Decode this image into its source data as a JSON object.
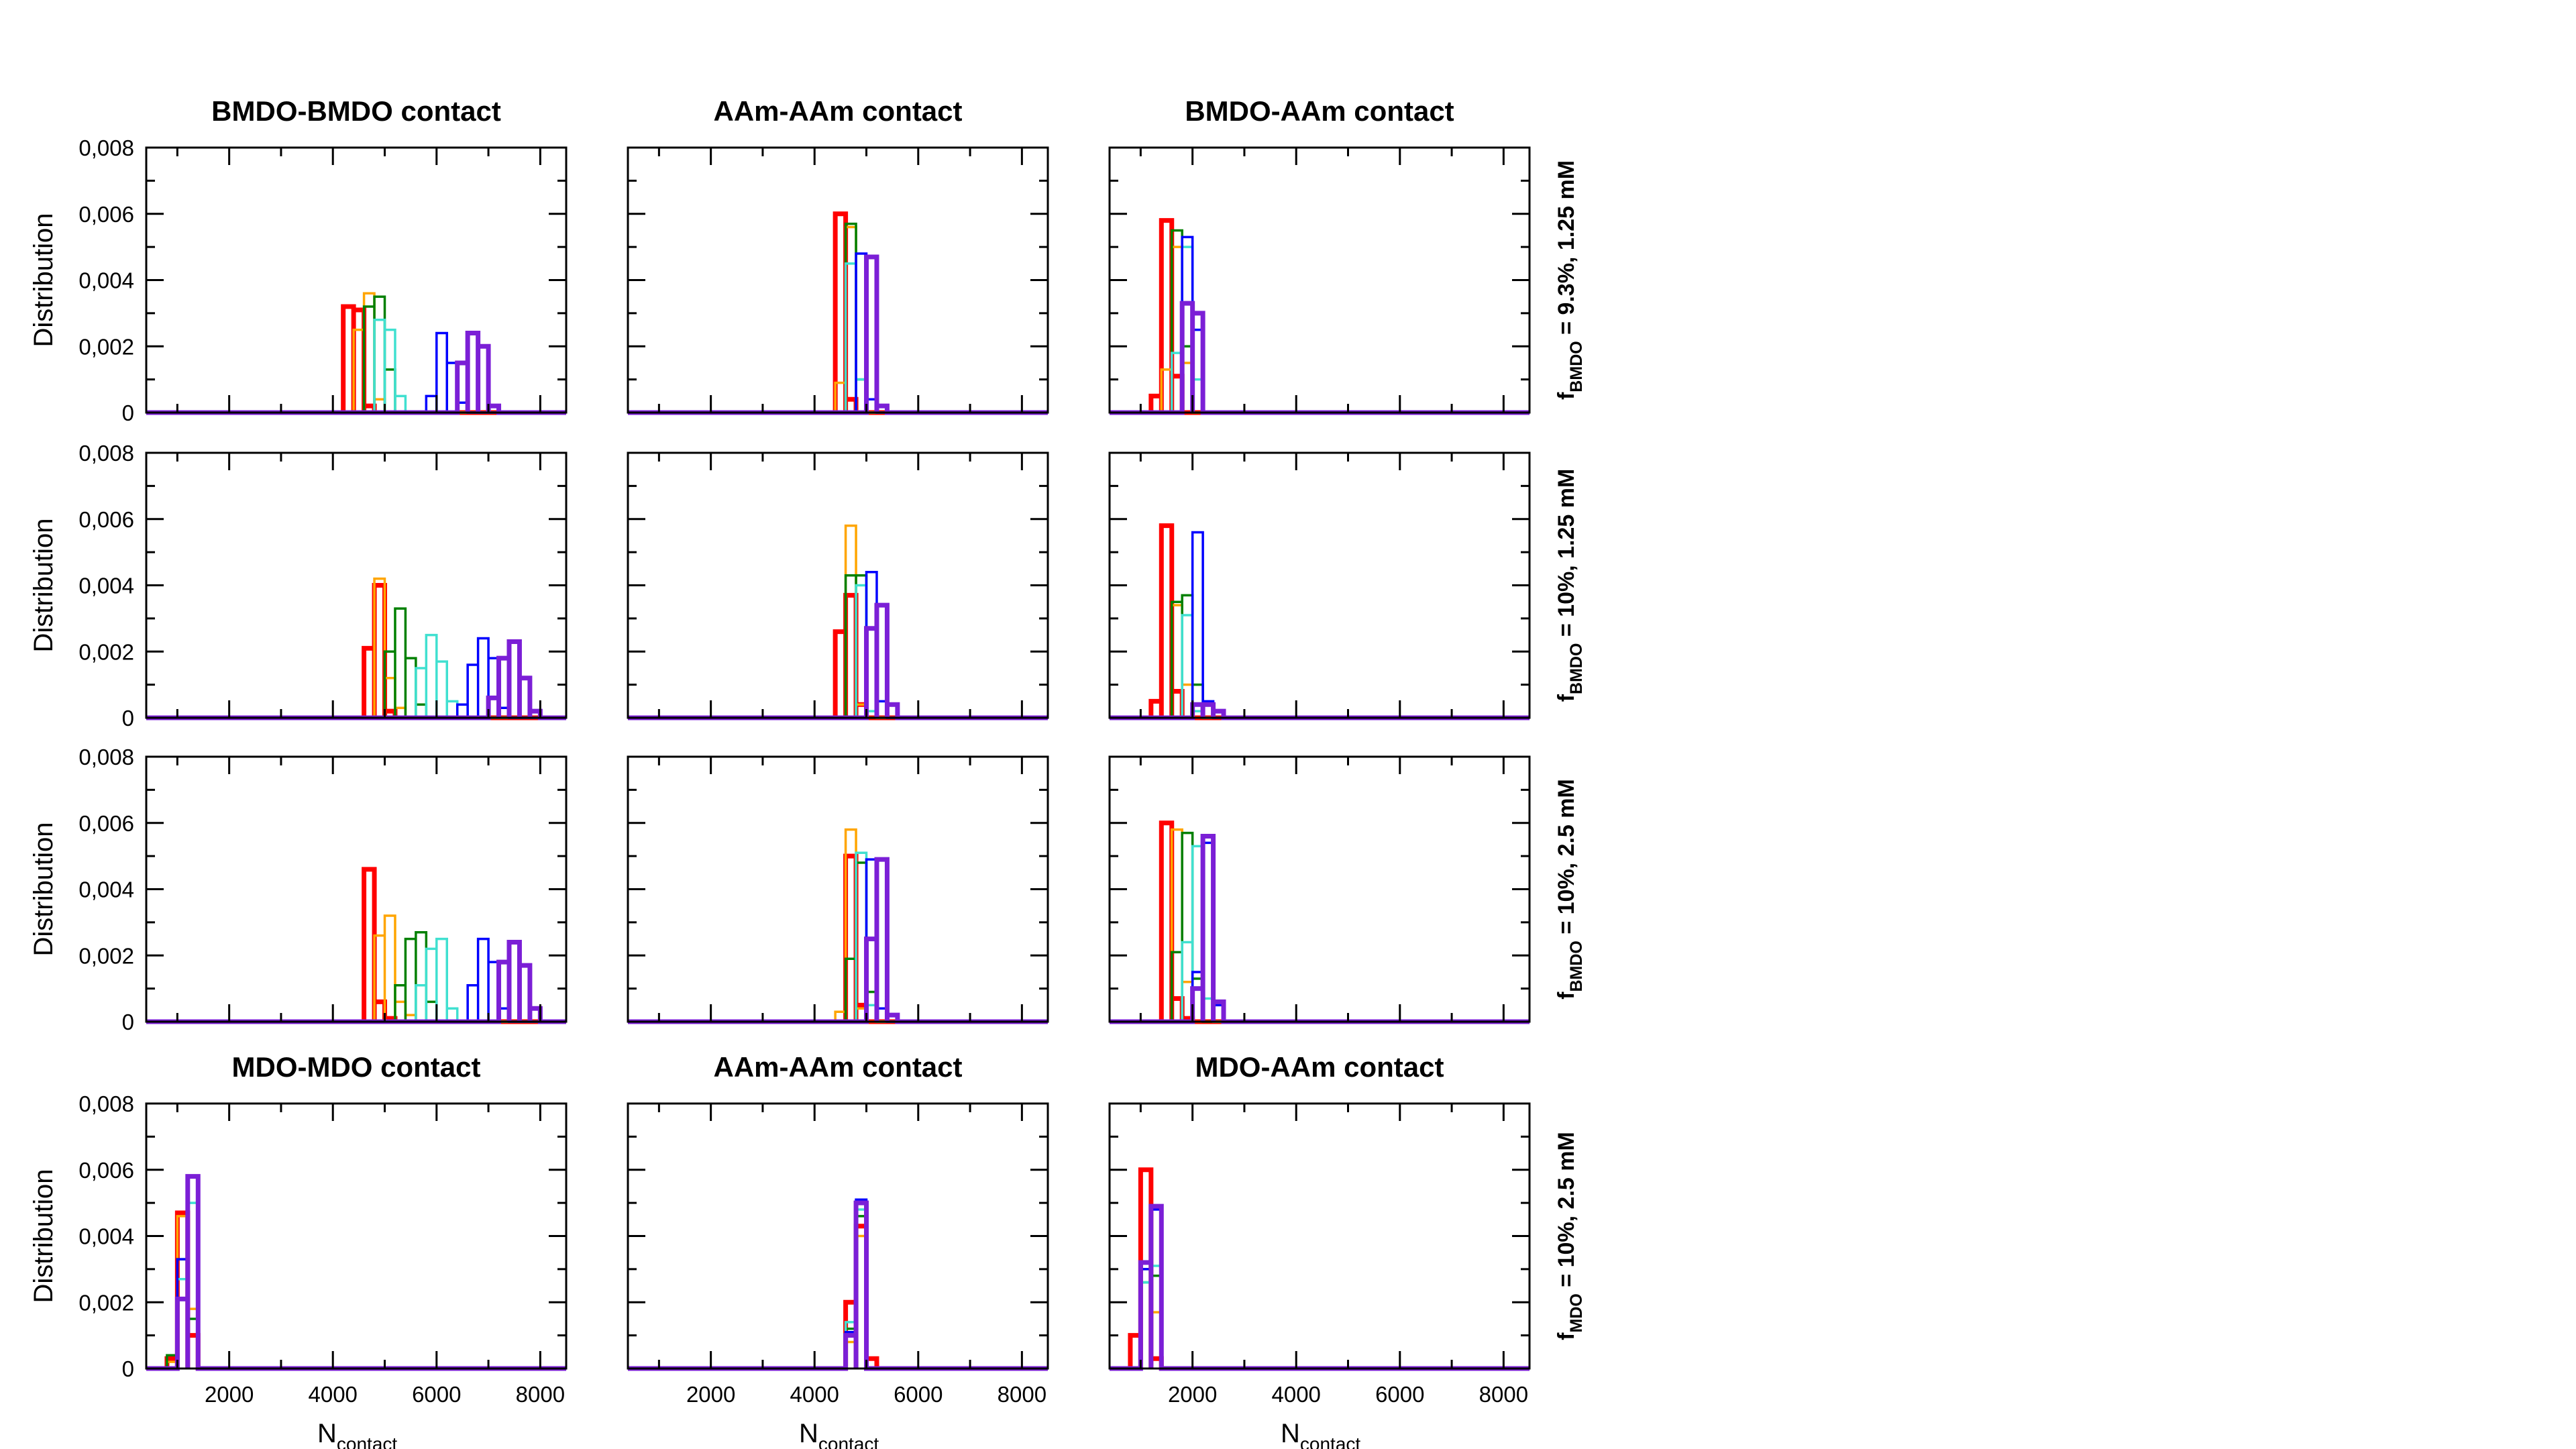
{
  "figure": {
    "x_axis_label": "N",
    "x_axis_label_sub": "contact",
    "y_axis_label": "Distribution",
    "xlim": [
      400,
      8500
    ],
    "ylim": [
      0,
      0.008
    ],
    "x_ticks": [
      2000,
      4000,
      6000,
      8000
    ],
    "y_ticks": [
      0,
      0.002,
      0.004,
      0.006,
      0.008
    ],
    "y_tick_labels": [
      "0",
      "0,002",
      "0,004",
      "0,006",
      "0,008"
    ],
    "x_tick_labels": [
      "2000",
      "4000",
      "6000",
      "8000"
    ],
    "colors": [
      "#ff0000",
      "#ffa500",
      "#008000",
      "#40e0d0",
      "#0000ff",
      "#7b1fd6"
    ],
    "bold_series": [
      0,
      5
    ],
    "titles_top": [
      "BMDO-BMDO contact",
      "AAm-AAm contact",
      "BMDO-AAm contact"
    ],
    "titles_bottom": [
      "MDO-MDO contact",
      "AAm-AAm contact",
      "MDO-AAm contact"
    ],
    "row_labels": [
      {
        "f": "f",
        "sub": "BMDO",
        "rest": " = 9.3%, 1.25 mM"
      },
      {
        "f": "f",
        "sub": "BMDO",
        "rest": " = 10%, 1.25 mM"
      },
      {
        "f": "f",
        "sub": "BMDO",
        "rest": " = 10%, 2.5 mM"
      },
      {
        "f": "f",
        "sub": "MDO",
        "rest": " = 10%, 2.5 mM"
      }
    ]
  },
  "chart_data": [
    {
      "type": "step",
      "panel": "row1-col1",
      "title": "BMDO-BMDO contact",
      "xlabel": "",
      "ylabel": "Distribution",
      "xlim": [
        400,
        8500
      ],
      "ylim": [
        0,
        0.008
      ],
      "bin_width": 200,
      "series": [
        {
          "x": [
            4300,
            4500,
            4700
          ],
          "values": [
            0.0032,
            0.0031,
            0.0002
          ]
        },
        {
          "x": [
            4500,
            4700,
            4900
          ],
          "values": [
            0.0025,
            0.0036,
            0.0004
          ]
        },
        {
          "x": [
            4700,
            4900,
            5100
          ],
          "values": [
            0.0032,
            0.0035,
            0.0013
          ]
        },
        {
          "x": [
            4900,
            5100,
            5300
          ],
          "values": [
            0.0028,
            0.0025,
            0.0005
          ]
        },
        {
          "x": [
            5900,
            6100,
            6300,
            6500
          ],
          "values": [
            0.0005,
            0.0024,
            0.0015,
            0.0003
          ]
        },
        {
          "x": [
            6500,
            6700,
            6900,
            7100
          ],
          "values": [
            0.0015,
            0.0024,
            0.002,
            0.0002
          ]
        }
      ]
    },
    {
      "type": "step",
      "panel": "row1-col2",
      "title": "AAm-AAm contact",
      "xlabel": "",
      "ylabel": "",
      "xlim": [
        400,
        8500
      ],
      "ylim": [
        0,
        0.008
      ],
      "bin_width": 200,
      "series": [
        {
          "x": [
            4500,
            4700
          ],
          "values": [
            0.006,
            0.0004
          ]
        },
        {
          "x": [
            4500,
            4700
          ],
          "values": [
            0.0009,
            0.0056
          ]
        },
        {
          "x": [
            4700,
            4900
          ],
          "values": [
            0.0057,
            0.001
          ]
        },
        {
          "x": [
            4700,
            4900
          ],
          "values": [
            0.0045,
            0.001
          ]
        },
        {
          "x": [
            4900,
            5100
          ],
          "values": [
            0.0048,
            0.0004
          ]
        },
        {
          "x": [
            5100,
            5300
          ],
          "values": [
            0.0047,
            0.0002
          ]
        }
      ]
    },
    {
      "type": "step",
      "panel": "row1-col3",
      "title": "BMDO-AAm contact",
      "xlabel": "",
      "ylabel": "",
      "xlim": [
        400,
        8500
      ],
      "ylim": [
        0,
        0.008
      ],
      "bin_width": 200,
      "series": [
        {
          "x": [
            1300,
            1500,
            1700
          ],
          "values": [
            0.0005,
            0.0058,
            0.0011
          ]
        },
        {
          "x": [
            1500,
            1700,
            1900
          ],
          "values": [
            0.0013,
            0.005,
            0.0015
          ]
        },
        {
          "x": [
            1700,
            1900
          ],
          "values": [
            0.0055,
            0.002
          ]
        },
        {
          "x": [
            1700,
            1900,
            2100
          ],
          "values": [
            0.0018,
            0.005,
            0.001
          ]
        },
        {
          "x": [
            1900,
            2100
          ],
          "values": [
            0.0053,
            0.0025
          ]
        },
        {
          "x": [
            1900,
            2100
          ],
          "values": [
            0.0033,
            0.003
          ]
        }
      ]
    },
    {
      "type": "step",
      "panel": "row2-col1",
      "title": "",
      "xlabel": "",
      "ylabel": "Distribution",
      "xlim": [
        400,
        8500
      ],
      "ylim": [
        0,
        0.008
      ],
      "bin_width": 200,
      "series": [
        {
          "x": [
            4700,
            4900,
            5100
          ],
          "values": [
            0.0021,
            0.004,
            0.0002
          ]
        },
        {
          "x": [
            4900,
            5100,
            5300
          ],
          "values": [
            0.0042,
            0.0012,
            0.0003
          ]
        },
        {
          "x": [
            5100,
            5300,
            5500,
            5700
          ],
          "values": [
            0.002,
            0.0033,
            0.0018,
            0.0004
          ]
        },
        {
          "x": [
            5700,
            5900,
            6100,
            6300
          ],
          "values": [
            0.0015,
            0.0025,
            0.0017,
            0.0005
          ]
        },
        {
          "x": [
            6500,
            6700,
            6900,
            7100,
            7300
          ],
          "values": [
            0.0004,
            0.0016,
            0.0024,
            0.0018,
            0.0003
          ]
        },
        {
          "x": [
            7100,
            7300,
            7500,
            7700,
            7900
          ],
          "values": [
            0.0006,
            0.0018,
            0.0023,
            0.0012,
            0.0002
          ]
        }
      ]
    },
    {
      "type": "step",
      "panel": "row2-col2",
      "title": "",
      "xlabel": "",
      "ylabel": "",
      "xlim": [
        400,
        8500
      ],
      "ylim": [
        0,
        0.008
      ],
      "bin_width": 200,
      "series": [
        {
          "x": [
            4500,
            4700,
            4900
          ],
          "values": [
            0.0026,
            0.0037,
            0.0004
          ]
        },
        {
          "x": [
            4700,
            4900
          ],
          "values": [
            0.0058,
            0.0004
          ]
        },
        {
          "x": [
            4700,
            4900
          ],
          "values": [
            0.0043,
            0.0043
          ]
        },
        {
          "x": [
            4900,
            5100
          ],
          "values": [
            0.004,
            0.0002
          ]
        },
        {
          "x": [
            5100,
            5300
          ],
          "values": [
            0.0044,
            0.0005
          ]
        },
        {
          "x": [
            5100,
            5300,
            5500
          ],
          "values": [
            0.0027,
            0.0034,
            0.0004
          ]
        }
      ]
    },
    {
      "type": "step",
      "panel": "row2-col3",
      "title": "",
      "xlabel": "",
      "ylabel": "",
      "xlim": [
        400,
        8500
      ],
      "ylim": [
        0,
        0.008
      ],
      "bin_width": 200,
      "series": [
        {
          "x": [
            1300,
            1500,
            1700
          ],
          "values": [
            0.0005,
            0.0058,
            0.0008
          ]
        },
        {
          "x": [
            1700,
            1900
          ],
          "values": [
            0.0034,
            0.001
          ]
        },
        {
          "x": [
            1700,
            1900,
            2100
          ],
          "values": [
            0.0035,
            0.0037,
            0.001
          ]
        },
        {
          "x": [
            1900,
            2100
          ],
          "values": [
            0.0031,
            0.0002
          ]
        },
        {
          "x": [
            2100,
            2300
          ],
          "values": [
            0.0056,
            0.0005
          ]
        },
        {
          "x": [
            2100,
            2300,
            2500
          ],
          "values": [
            0.0004,
            0.0004,
            0.0002
          ]
        }
      ]
    },
    {
      "type": "step",
      "panel": "row3-col1",
      "title": "",
      "xlabel": "",
      "ylabel": "Distribution",
      "xlim": [
        400,
        8500
      ],
      "ylim": [
        0,
        0.008
      ],
      "bin_width": 200,
      "series": [
        {
          "x": [
            4700,
            4900,
            5100
          ],
          "values": [
            0.0046,
            0.0006,
            0.0001
          ]
        },
        {
          "x": [
            4900,
            5100,
            5300,
            5500
          ],
          "values": [
            0.0026,
            0.0032,
            0.0006,
            0.0002
          ]
        },
        {
          "x": [
            5300,
            5500,
            5700,
            5900
          ],
          "values": [
            0.0011,
            0.0025,
            0.0027,
            0.0006
          ]
        },
        {
          "x": [
            5700,
            5900,
            6100,
            6300
          ],
          "values": [
            0.0011,
            0.0022,
            0.0025,
            0.0004
          ]
        },
        {
          "x": [
            6700,
            6900,
            7100,
            7300
          ],
          "values": [
            0.0011,
            0.0025,
            0.0018,
            0.0004
          ]
        },
        {
          "x": [
            7300,
            7500,
            7700,
            7900
          ],
          "values": [
            0.0018,
            0.0024,
            0.0017,
            0.0004
          ]
        }
      ]
    },
    {
      "type": "step",
      "panel": "row3-col2",
      "title": "",
      "xlabel": "",
      "ylabel": "",
      "xlim": [
        400,
        8500
      ],
      "ylim": [
        0,
        0.008
      ],
      "bin_width": 200,
      "series": [
        {
          "x": [
            4700,
            4900
          ],
          "values": [
            0.005,
            0.0005
          ]
        },
        {
          "x": [
            4500,
            4700,
            4900
          ],
          "values": [
            0.0003,
            0.0058,
            0.0004
          ]
        },
        {
          "x": [
            4700,
            4900,
            5100
          ],
          "values": [
            0.0019,
            0.0048,
            0.0009
          ]
        },
        {
          "x": [
            4900,
            5100
          ],
          "values": [
            0.0051,
            0.0005
          ]
        },
        {
          "x": [
            5100,
            5300
          ],
          "values": [
            0.0049,
            0.0004
          ]
        },
        {
          "x": [
            5100,
            5300,
            5500
          ],
          "values": [
            0.0025,
            0.0049,
            0.0002
          ]
        }
      ]
    },
    {
      "type": "step",
      "panel": "row3-col3",
      "title": "",
      "xlabel": "",
      "ylabel": "",
      "xlim": [
        400,
        8500
      ],
      "ylim": [
        0,
        0.008
      ],
      "bin_width": 200,
      "series": [
        {
          "x": [
            1500,
            1700,
            1900
          ],
          "values": [
            0.006,
            0.0007,
            0.0001
          ]
        },
        {
          "x": [
            1700,
            1900
          ],
          "values": [
            0.0058,
            0.0012
          ]
        },
        {
          "x": [
            1700,
            1900,
            2100
          ],
          "values": [
            0.0021,
            0.0057,
            0.0013
          ]
        },
        {
          "x": [
            1900,
            2100,
            2300
          ],
          "values": [
            0.0024,
            0.0053,
            0.0007
          ]
        },
        {
          "x": [
            2100,
            2300,
            2500
          ],
          "values": [
            0.0015,
            0.0054,
            0.0005
          ]
        },
        {
          "x": [
            2100,
            2300,
            2500
          ],
          "values": [
            0.001,
            0.0056,
            0.0006
          ]
        }
      ]
    },
    {
      "type": "step",
      "panel": "row4-col1",
      "title": "MDO-MDO contact",
      "xlabel": "Ncontact",
      "ylabel": "Distribution",
      "xlim": [
        400,
        8500
      ],
      "ylim": [
        0,
        0.008
      ],
      "bin_width": 200,
      "series": [
        {
          "x": [
            900,
            1100,
            1300
          ],
          "values": [
            0.0003,
            0.0047,
            0.001
          ]
        },
        {
          "x": [
            900,
            1100,
            1300
          ],
          "values": [
            0.0002,
            0.0046,
            0.0018
          ]
        },
        {
          "x": [
            900,
            1100,
            1300
          ],
          "values": [
            0.0004,
            0.0033,
            0.0015
          ]
        },
        {
          "x": [
            1100,
            1300
          ],
          "values": [
            0.0027,
            0.005
          ]
        },
        {
          "x": [
            1100,
            1300
          ],
          "values": [
            0.0033,
            0.0058
          ]
        },
        {
          "x": [
            1100,
            1300
          ],
          "values": [
            0.0021,
            0.0058
          ]
        }
      ]
    },
    {
      "type": "step",
      "panel": "row4-col2",
      "title": "AAm-AAm contact",
      "xlabel": "Ncontact",
      "ylabel": "",
      "xlim": [
        400,
        8500
      ],
      "ylim": [
        0,
        0.008
      ],
      "bin_width": 200,
      "series": [
        {
          "x": [
            4700,
            4900,
            5100
          ],
          "values": [
            0.002,
            0.0043,
            0.0003
          ]
        },
        {
          "x": [
            4700,
            4900
          ],
          "values": [
            0.0008,
            0.004
          ]
        },
        {
          "x": [
            4700,
            4900
          ],
          "values": [
            0.0012,
            0.0046
          ]
        },
        {
          "x": [
            4700,
            4900
          ],
          "values": [
            0.0014,
            0.0048
          ]
        },
        {
          "x": [
            4700,
            4900
          ],
          "values": [
            0.0011,
            0.0051
          ]
        },
        {
          "x": [
            4700,
            4900
          ],
          "values": [
            0.001,
            0.005
          ]
        }
      ]
    },
    {
      "type": "step",
      "panel": "row4-col3",
      "title": "MDO-AAm contact",
      "xlabel": "Ncontact",
      "ylabel": "",
      "xlim": [
        400,
        8500
      ],
      "ylim": [
        0,
        0.008
      ],
      "bin_width": 200,
      "series": [
        {
          "x": [
            900,
            1100,
            1300
          ],
          "values": [
            0.001,
            0.006,
            0.0003
          ]
        },
        {
          "x": [
            1100,
            1300
          ],
          "values": [
            0.003,
            0.0017
          ]
        },
        {
          "x": [
            1100,
            1300
          ],
          "values": [
            0.0026,
            0.0028
          ]
        },
        {
          "x": [
            1100,
            1300
          ],
          "values": [
            0.0026,
            0.0031
          ]
        },
        {
          "x": [
            1100,
            1300
          ],
          "values": [
            0.003,
            0.0048
          ]
        },
        {
          "x": [
            1100,
            1300
          ],
          "values": [
            0.0032,
            0.0049
          ]
        }
      ]
    }
  ]
}
